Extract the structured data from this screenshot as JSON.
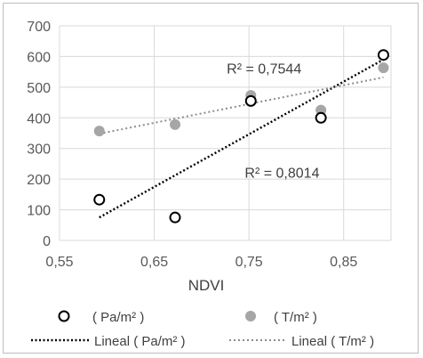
{
  "chart_data": {
    "type": "scatter",
    "title": "",
    "xlabel": "NDVI",
    "ylabel": "",
    "xlim": [
      0.55,
      0.9
    ],
    "ylim": [
      0,
      700
    ],
    "x_ticks": [
      "0,55",
      "0,65",
      "0,75",
      "0,85"
    ],
    "x_tick_values": [
      0.55,
      0.65,
      0.75,
      0.85
    ],
    "y_ticks": [
      "0",
      "100",
      "200",
      "300",
      "400",
      "500",
      "600",
      "700"
    ],
    "y_tick_values": [
      0,
      100,
      200,
      300,
      400,
      500,
      600,
      700
    ],
    "grid": true,
    "legend_position": "bottom",
    "series": [
      {
        "name": "( Pa/m² )",
        "marker": "open-circle",
        "color": "#000000",
        "x": [
          0.592,
          0.672,
          0.752,
          0.826,
          0.892
        ],
        "y": [
          133,
          75,
          455,
          400,
          605
        ]
      },
      {
        "name": "( T/m² )",
        "marker": "filled-circle",
        "color": "#a6a6a6",
        "x": [
          0.592,
          0.672,
          0.752,
          0.826,
          0.892
        ],
        "y": [
          357,
          378,
          473,
          425,
          563
        ]
      }
    ],
    "trendlines": [
      {
        "name": "Lineal ( Pa/m² )",
        "style": "dotted",
        "color": "#000000",
        "x": [
          0.592,
          0.892
        ],
        "y": [
          75,
          590
        ]
      },
      {
        "name": "Lineal ( T/m² )",
        "style": "dotted",
        "color": "#8c8c8c",
        "x": [
          0.592,
          0.892
        ],
        "y": [
          348,
          532
        ]
      }
    ],
    "annotations": [
      {
        "text": "R² = 0,7544",
        "x": 0.766,
        "y": 545
      },
      {
        "text": "R² = 0,8014",
        "x": 0.785,
        "y": 205
      }
    ]
  }
}
